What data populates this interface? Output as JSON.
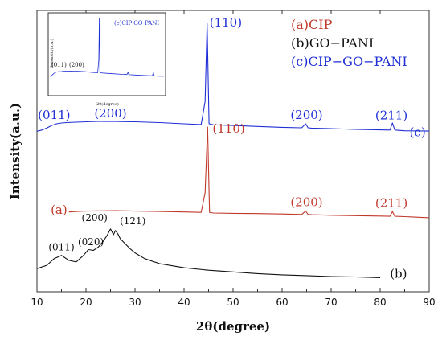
{
  "chart_data": {
    "type": "line",
    "xlabel": "2θ(degree)",
    "ylabel": "Intensity(a.u.)",
    "xlim": [
      10,
      90
    ],
    "xticks": [
      10,
      20,
      30,
      40,
      50,
      60,
      70,
      80,
      90
    ],
    "grid": false,
    "legend": {
      "placement": "top-right",
      "entries": [
        {
          "label": "(a)CIP",
          "color": "#c0392b"
        },
        {
          "label": "(b)GO−PANI",
          "color": "#111111"
        },
        {
          "label": "(c)CIP−GO−PANI",
          "color": "#1f2fd6"
        }
      ]
    },
    "series": [
      {
        "name": "(c)CIP−GO−PANI",
        "curve_label": "(c)",
        "color": "#1f2fd6",
        "x": [
          10,
          11,
          12,
          13,
          14,
          15,
          16,
          18,
          20,
          22,
          25,
          28,
          30,
          35,
          40,
          43.5,
          44.3,
          44.7,
          45.1,
          46,
          50,
          55,
          60,
          64,
          64.8,
          65.3,
          66,
          70,
          75,
          80,
          82,
          82.5,
          83,
          85,
          90
        ],
        "y": [
          0.4,
          0.55,
          0.8,
          1.1,
          1.3,
          1.4,
          1.45,
          1.5,
          1.55,
          1.58,
          1.6,
          1.57,
          1.55,
          1.45,
          1.3,
          1.22,
          4.0,
          13.5,
          1.3,
          1.18,
          1.1,
          0.98,
          0.88,
          0.82,
          1.3,
          0.82,
          0.78,
          0.72,
          0.62,
          0.56,
          0.55,
          1.4,
          0.55,
          0.46,
          0.42
        ],
        "peaks": [
          {
            "label": "(011)",
            "x": 15
          },
          {
            "label": "(200)",
            "x": 25
          },
          {
            "label": "(110)",
            "x": 44.7
          },
          {
            "label": "(200)",
            "x": 65
          },
          {
            "label": "(211)",
            "x": 82.3
          }
        ]
      },
      {
        "name": "(a)CIP",
        "curve_label": "(a)",
        "color": "#c0392b",
        "x": [
          16.5,
          18,
          20,
          23,
          26,
          30,
          35,
          40,
          43.5,
          44.3,
          44.8,
          45.2,
          46,
          50,
          55,
          60,
          64,
          64.8,
          65.3,
          66,
          70,
          75,
          80,
          82,
          82.5,
          83,
          85,
          90
        ],
        "y": [
          -9.35,
          -9.3,
          -9.25,
          -9.22,
          -9.2,
          -9.25,
          -9.3,
          -9.35,
          -9.4,
          -7.0,
          0.9,
          -9.4,
          -9.48,
          -9.52,
          -9.55,
          -9.6,
          -9.65,
          -9.25,
          -9.65,
          -9.68,
          -9.75,
          -9.8,
          -9.85,
          -9.88,
          -9.3,
          -9.88,
          -9.92,
          -10.05
        ],
        "peaks": [
          {
            "label": "(110)",
            "x": 44.8
          },
          {
            "label": "(200)",
            "x": 65
          },
          {
            "label": "(211)",
            "x": 82.3
          }
        ]
      },
      {
        "name": "(b)GO−PANI",
        "curve_label": "(b)",
        "color": "#111111",
        "x": [
          10,
          12,
          13.5,
          15,
          16.5,
          18,
          19.5,
          20.5,
          21.5,
          22.5,
          23.5,
          24.3,
          25,
          25.6,
          26,
          26.5,
          27,
          28,
          29,
          30,
          32,
          35,
          38,
          40,
          45,
          50,
          55,
          60,
          65,
          70,
          75,
          80
        ],
        "y": [
          -16.2,
          -15.8,
          -15.0,
          -14.6,
          -15.2,
          -15.4,
          -14.6,
          -13.9,
          -14.0,
          -13.6,
          -12.9,
          -12.2,
          -11.4,
          -12.1,
          -11.6,
          -12.0,
          -12.6,
          -13.2,
          -13.8,
          -14.3,
          -15.0,
          -15.6,
          -15.9,
          -16.1,
          -16.4,
          -16.6,
          -16.8,
          -16.95,
          -17.05,
          -17.15,
          -17.2,
          -17.3
        ],
        "peaks": [
          {
            "label": "(011)",
            "x": 15
          },
          {
            "label": "(020)",
            "x": 21
          },
          {
            "label": "(200)",
            "x": 25
          },
          {
            "label": "(121)",
            "x": 26.5
          }
        ]
      }
    ],
    "inset": {
      "type": "line",
      "title": "(c)CIP-GO-PANI",
      "xlabel": "2θ(degree)",
      "ylabel": "Intensity(a.u.)",
      "annotations": [
        "(011)",
        "(200)"
      ],
      "color": "#1f2fd6"
    }
  }
}
